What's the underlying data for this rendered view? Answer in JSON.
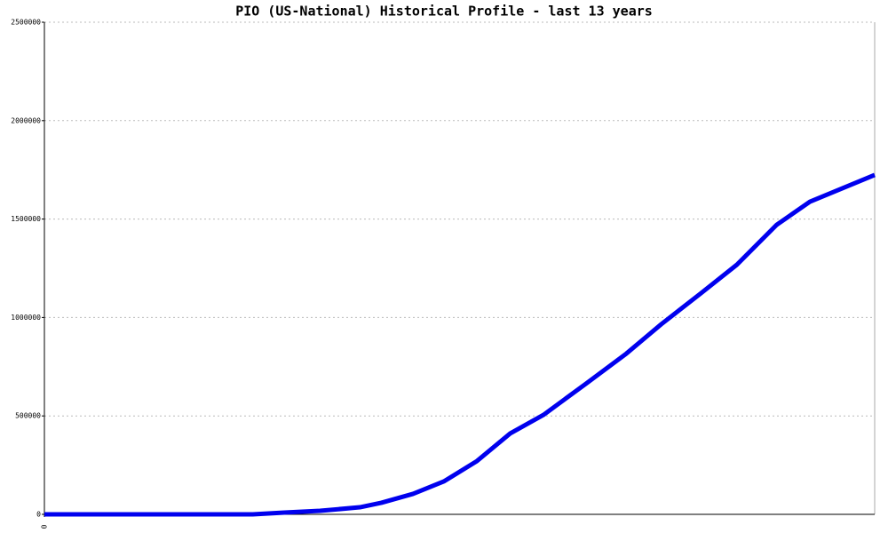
{
  "chart_data": {
    "type": "line",
    "title": "PIO (US-National) Historical Profile - last 13 years",
    "x": [
      0,
      25.1,
      28.9,
      33.2,
      38,
      40.6,
      44.4,
      48.1,
      52.1,
      56.1,
      60.1,
      65.2,
      70.1,
      74.3,
      79.1,
      83.4,
      88.2,
      92.2,
      100
    ],
    "series": [
      {
        "color": "#0000ee",
        "values": [
          0,
          0,
          9000,
          18000,
          36000,
          59000,
          104000,
          167000,
          271000,
          411000,
          505000,
          663000,
          817000,
          966000,
          1124000,
          1268000,
          1471000,
          1588000,
          1724000
        ]
      }
    ],
    "xlim": [
      0,
      100
    ],
    "xticks": [
      0
    ],
    "ylim": [
      0,
      2500000
    ],
    "yticks": [
      0,
      500000,
      1000000,
      1500000,
      2000000,
      2500000
    ],
    "grid": true
  }
}
